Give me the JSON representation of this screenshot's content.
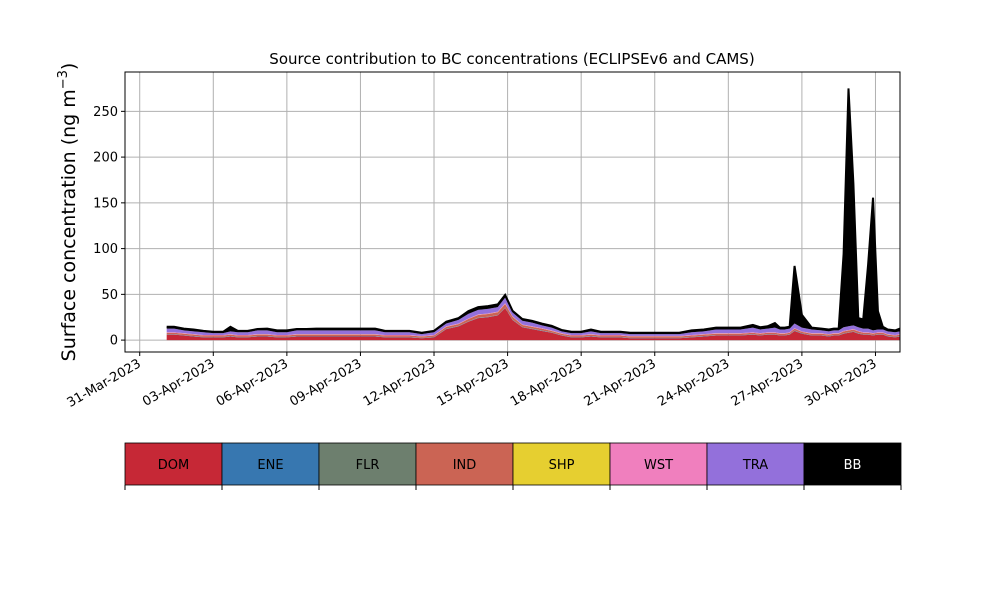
{
  "chart_data": {
    "type": "area",
    "stacked": true,
    "title": "Source contribution to BC concentrations (ECLIPSEv6 and CAMS)",
    "ylabel_main": "Surface concentration (ng m",
    "ylabel_sup": "−3",
    "ylabel_close": ")",
    "xlabel": "",
    "ylim": [
      -13,
      293
    ],
    "xlim": [
      -0.6,
      31.0
    ],
    "grid": true,
    "x_ticks": [
      {
        "value": 0,
        "label": "31-Mar-2023"
      },
      {
        "value": 3,
        "label": "03-Apr-2023"
      },
      {
        "value": 6,
        "label": "06-Apr-2023"
      },
      {
        "value": 9,
        "label": "09-Apr-2023"
      },
      {
        "value": 12,
        "label": "12-Apr-2023"
      },
      {
        "value": 15,
        "label": "15-Apr-2023"
      },
      {
        "value": 18,
        "label": "18-Apr-2023"
      },
      {
        "value": 21,
        "label": "21-Apr-2023"
      },
      {
        "value": 24,
        "label": "24-Apr-2023"
      },
      {
        "value": 27,
        "label": "27-Apr-2023"
      },
      {
        "value": 30,
        "label": "30-Apr-2023"
      }
    ],
    "y_ticks": [
      0,
      50,
      100,
      150,
      200,
      250
    ],
    "x": [
      1.1,
      1.4,
      1.8,
      2.2,
      2.6,
      3.0,
      3.4,
      3.7,
      4.0,
      4.4,
      4.8,
      5.2,
      5.6,
      6.0,
      6.4,
      6.8,
      7.2,
      7.6,
      8.0,
      8.4,
      8.8,
      9.2,
      9.6,
      10.0,
      10.5,
      11.0,
      11.5,
      12.0,
      12.5,
      13.0,
      13.4,
      13.8,
      14.2,
      14.6,
      14.9,
      15.2,
      15.6,
      16.0,
      16.4,
      16.8,
      17.2,
      17.6,
      18.0,
      18.4,
      18.8,
      19.2,
      19.6,
      20.0,
      20.5,
      21.0,
      21.5,
      22.0,
      22.5,
      23.0,
      23.5,
      24.0,
      24.5,
      25.0,
      25.3,
      25.6,
      25.9,
      26.1,
      26.3,
      26.5,
      26.7,
      27.0,
      27.4,
      27.8,
      28.1,
      28.3,
      28.5,
      28.7,
      28.9,
      29.1,
      29.3,
      29.5,
      29.7,
      29.9,
      30.1,
      30.3,
      30.5,
      30.8,
      31.0
    ],
    "series": [
      {
        "name": "DOM",
        "color": "#c62836",
        "values": [
          6,
          6,
          5,
          4,
          3,
          3,
          3,
          4,
          3,
          3,
          4,
          4,
          3,
          3,
          4,
          4,
          4,
          4,
          4,
          4,
          4,
          4,
          4,
          3,
          3,
          3,
          2,
          3,
          12,
          15,
          20,
          24,
          25,
          27,
          35,
          22,
          14,
          12,
          10,
          8,
          5,
          3,
          3,
          4,
          3,
          3,
          3,
          2,
          2,
          2,
          2,
          2,
          3,
          4,
          5,
          5,
          5,
          6,
          5,
          6,
          6,
          5,
          5,
          6,
          10,
          7,
          5,
          5,
          4,
          5,
          5,
          7,
          8,
          9,
          7,
          6,
          6,
          5,
          6,
          6,
          4,
          3,
          4
        ]
      },
      {
        "name": "ENE",
        "color": "#3777b0",
        "values": [
          0.3,
          0.3,
          0.3,
          0.3,
          0.3,
          0.3,
          0.3,
          0.3,
          0.3,
          0.3,
          0.3,
          0.3,
          0.3,
          0.3,
          0.3,
          0.3,
          0.3,
          0.3,
          0.3,
          0.3,
          0.3,
          0.3,
          0.3,
          0.3,
          0.3,
          0.3,
          0.3,
          0.3,
          0.3,
          0.3,
          0.3,
          0.3,
          0.3,
          0.3,
          0.3,
          0.3,
          0.3,
          0.3,
          0.3,
          0.3,
          0.3,
          0.3,
          0.3,
          0.3,
          0.3,
          0.3,
          0.3,
          0.3,
          0.3,
          0.3,
          0.3,
          0.3,
          0.3,
          0.3,
          0.3,
          0.3,
          0.3,
          0.3,
          0.3,
          0.3,
          0.3,
          0.3,
          0.3,
          0.3,
          0.3,
          0.3,
          0.3,
          0.3,
          0.3,
          0.3,
          0.3,
          0.3,
          0.3,
          0.3,
          0.3,
          0.3,
          0.3,
          0.3,
          0.3,
          0.3,
          0.3,
          0.3,
          0.3
        ]
      },
      {
        "name": "FLR",
        "color": "#6d7f6e",
        "values": [
          0.2,
          0.2,
          0.2,
          0.2,
          0.2,
          0.2,
          0.2,
          0.2,
          0.2,
          0.2,
          0.2,
          0.2,
          0.2,
          0.2,
          0.2,
          0.2,
          0.2,
          0.2,
          0.2,
          0.2,
          0.2,
          0.2,
          0.2,
          0.2,
          0.2,
          0.2,
          0.2,
          0.2,
          0.2,
          0.2,
          0.2,
          0.2,
          0.2,
          0.2,
          0.2,
          0.2,
          0.2,
          0.2,
          0.2,
          0.2,
          0.2,
          0.2,
          0.2,
          0.2,
          0.2,
          0.2,
          0.2,
          0.2,
          0.2,
          0.2,
          0.2,
          0.2,
          0.2,
          0.2,
          0.2,
          0.2,
          0.2,
          0.2,
          0.2,
          0.2,
          0.2,
          0.2,
          0.2,
          0.2,
          0.2,
          0.2,
          0.2,
          0.2,
          0.2,
          0.2,
          0.2,
          0.2,
          0.2,
          0.2,
          0.2,
          0.2,
          0.2,
          0.2,
          0.2,
          0.2,
          0.2,
          0.2,
          0.2
        ]
      },
      {
        "name": "IND",
        "color": "#cb6454",
        "values": [
          1.5,
          1.5,
          1.5,
          1.5,
          1.5,
          1.5,
          1.5,
          1.5,
          1.5,
          1.5,
          1.5,
          1.5,
          1.5,
          1.5,
          1.5,
          1.5,
          1.5,
          1.5,
          1.5,
          1.5,
          1.5,
          1.5,
          1.5,
          1.5,
          1.5,
          1.5,
          1.5,
          1.5,
          2,
          2,
          2.5,
          3,
          3,
          3,
          4,
          3,
          2,
          2,
          2,
          1.5,
          1.5,
          1.5,
          1.5,
          1.5,
          1.5,
          1.5,
          1.5,
          1.5,
          1.5,
          1.5,
          1.5,
          1.5,
          1.5,
          1.5,
          1.5,
          1.5,
          1.5,
          1.5,
          1.5,
          1.5,
          1.5,
          1.5,
          1.5,
          1.5,
          2,
          1.5,
          1.5,
          1.5,
          1.5,
          1.5,
          1.5,
          2,
          2,
          2,
          2,
          1.5,
          1.5,
          1.5,
          1.5,
          1.5,
          1.5,
          1.5,
          1.5
        ]
      },
      {
        "name": "SHP",
        "color": "#e6cf30",
        "values": [
          0.1,
          0.1,
          0.1,
          0.1,
          0.1,
          0.1,
          0.1,
          0.1,
          0.1,
          0.1,
          0.1,
          0.1,
          0.1,
          0.1,
          0.1,
          0.1,
          0.1,
          0.1,
          0.1,
          0.1,
          0.1,
          0.1,
          0.1,
          0.1,
          0.1,
          0.1,
          0.1,
          0.1,
          0.1,
          0.1,
          0.1,
          0.1,
          0.1,
          0.1,
          0.1,
          0.1,
          0.1,
          0.1,
          0.1,
          0.1,
          0.1,
          0.1,
          0.1,
          0.1,
          0.1,
          0.1,
          0.1,
          0.1,
          0.1,
          0.1,
          0.1,
          0.1,
          0.1,
          0.1,
          0.1,
          0.1,
          0.1,
          0.1,
          0.1,
          0.1,
          0.1,
          0.1,
          0.1,
          0.1,
          0.1,
          0.1,
          0.1,
          0.1,
          0.1,
          0.1,
          0.1,
          0.1,
          0.1,
          0.1,
          0.1,
          0.1,
          0.1,
          0.1,
          0.1,
          0.1,
          0.1,
          0.1,
          0.1
        ]
      },
      {
        "name": "WST",
        "color": "#f07fbe",
        "values": [
          0.5,
          0.5,
          0.5,
          0.5,
          0.5,
          0.5,
          0.5,
          0.5,
          0.5,
          0.5,
          0.5,
          0.5,
          0.5,
          0.5,
          0.5,
          0.5,
          0.5,
          0.5,
          0.5,
          0.5,
          0.5,
          0.5,
          0.5,
          0.5,
          0.5,
          0.5,
          0.5,
          0.5,
          0.5,
          0.5,
          0.5,
          0.5,
          0.5,
          0.5,
          0.8,
          0.5,
          0.5,
          0.5,
          0.5,
          0.5,
          0.5,
          0.5,
          0.5,
          0.5,
          0.5,
          0.5,
          0.5,
          0.5,
          0.5,
          0.5,
          0.5,
          0.5,
          0.5,
          0.5,
          0.5,
          0.5,
          0.5,
          0.5,
          0.5,
          0.5,
          0.5,
          0.5,
          0.5,
          0.5,
          0.5,
          0.5,
          0.5,
          0.5,
          0.5,
          0.5,
          0.5,
          0.5,
          0.5,
          0.5,
          0.5,
          0.5,
          0.5,
          0.5,
          0.5,
          0.5,
          0.5,
          0.5,
          0.5
        ]
      },
      {
        "name": "TRA",
        "color": "#9370db",
        "values": [
          4,
          4,
          3,
          3,
          3,
          2,
          2,
          3,
          3,
          3,
          4,
          4,
          3,
          3,
          4,
          4,
          4,
          4,
          4,
          4,
          4,
          4,
          4,
          3,
          3,
          3,
          2,
          3,
          3,
          4,
          5,
          5,
          5,
          5,
          6,
          4,
          4,
          4,
          3,
          3,
          2,
          2,
          2,
          3,
          2,
          2,
          2,
          2,
          2,
          2,
          2,
          2,
          3,
          3,
          4,
          4,
          4,
          5,
          4,
          4,
          5,
          4,
          4,
          4,
          5,
          4,
          4,
          3,
          3,
          3,
          3,
          4,
          4,
          4,
          4,
          4,
          4,
          3,
          3,
          3,
          3,
          3,
          3
        ]
      },
      {
        "name": "BB",
        "color": "#000000",
        "values": [
          2,
          2,
          2,
          2,
          1.5,
          1.5,
          1.5,
          5,
          1.5,
          1.5,
          1.5,
          2,
          2,
          2,
          1.5,
          1.5,
          2,
          2,
          2,
          2,
          2,
          2,
          2,
          1.5,
          1.5,
          1.5,
          1.5,
          1.5,
          2,
          2,
          3,
          3,
          3,
          3,
          3,
          2,
          2,
          2,
          2,
          2,
          1.5,
          1.5,
          1.5,
          2,
          1.5,
          1.5,
          1.5,
          1.5,
          1.5,
          1.5,
          1.5,
          1.5,
          2,
          2,
          2,
          2,
          2,
          3,
          2.5,
          2.5,
          5,
          2,
          2,
          2,
          63,
          14,
          2,
          2,
          2,
          2,
          2,
          80,
          260,
          155,
          10,
          10,
          70,
          145,
          20,
          3,
          2,
          2,
          3
        ]
      }
    ],
    "legend": {
      "placement": "bottom",
      "entries": [
        {
          "label": "DOM",
          "color": "#c62836",
          "text_color": "#000000"
        },
        {
          "label": "ENE",
          "color": "#3777b0",
          "text_color": "#000000"
        },
        {
          "label": "FLR",
          "color": "#6d7f6e",
          "text_color": "#000000"
        },
        {
          "label": "IND",
          "color": "#cb6454",
          "text_color": "#000000"
        },
        {
          "label": "SHP",
          "color": "#e6cf30",
          "text_color": "#000000"
        },
        {
          "label": "WST",
          "color": "#f07fbe",
          "text_color": "#000000"
        },
        {
          "label": "TRA",
          "color": "#9370db",
          "text_color": "#000000"
        },
        {
          "label": "BB",
          "color": "#000000",
          "text_color": "#ffffff"
        }
      ]
    }
  }
}
